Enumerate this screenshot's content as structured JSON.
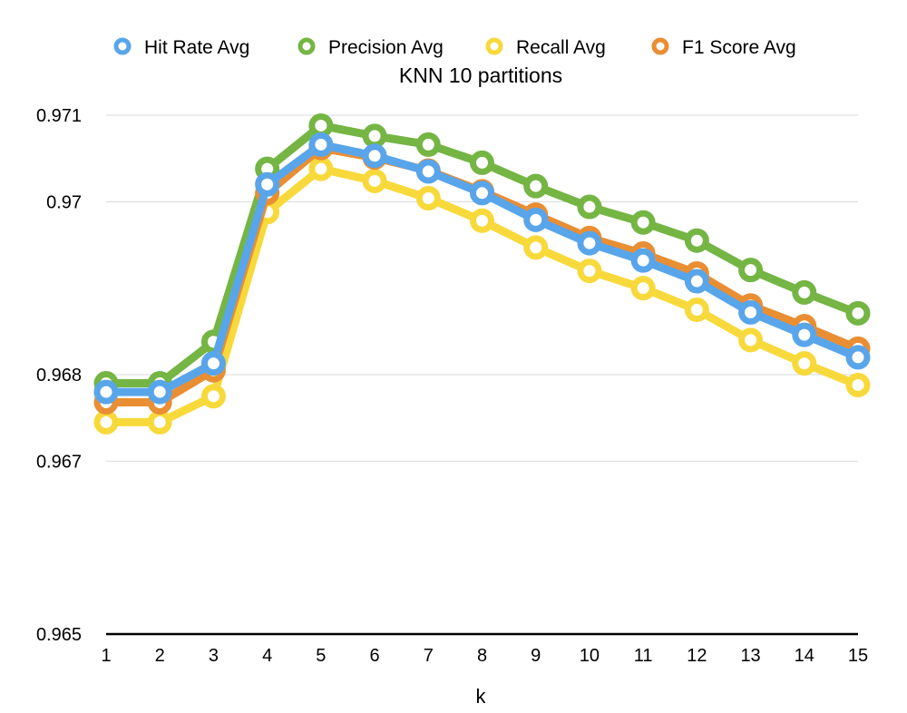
{
  "chart_data": {
    "type": "line",
    "title": "KNN 10 partitions",
    "xlabel": "k",
    "ylabel": "",
    "x": [
      1,
      2,
      3,
      4,
      5,
      6,
      7,
      8,
      9,
      10,
      11,
      12,
      13,
      14,
      15
    ],
    "ylim": [
      0.965,
      0.971
    ],
    "yticks": [
      0.965,
      0.967,
      0.968,
      0.97,
      0.971
    ],
    "ytick_labels": [
      "0.965",
      "0.967",
      "0.968",
      "0.97",
      "0.971"
    ],
    "grid": true,
    "legend_position": "top",
    "series": [
      {
        "name": "Precision Avg",
        "color": "#74b544",
        "values": [
          0.9679,
          0.9679,
          0.96838,
          0.97038,
          0.97088,
          0.97076,
          0.97066,
          0.97045,
          0.97018,
          0.96994,
          0.96976,
          0.96955,
          0.96921,
          0.96895,
          0.96871
        ]
      },
      {
        "name": "Recall Avg",
        "color": "#f8d93b",
        "values": [
          0.96745,
          0.96745,
          0.96775,
          0.96988,
          0.97038,
          0.97024,
          0.97004,
          0.96978,
          0.96947,
          0.9692,
          0.969,
          0.96875,
          0.9684,
          0.96813,
          0.96788
        ]
      },
      {
        "name": "F1 Score Avg",
        "color": "#e98e33",
        "values": [
          0.96768,
          0.96768,
          0.96805,
          0.9701,
          0.97062,
          0.97051,
          0.97036,
          0.97012,
          0.96985,
          0.96958,
          0.9694,
          0.96917,
          0.9688,
          0.96856,
          0.9683
        ]
      },
      {
        "name": "Hit Rate Avg",
        "color": "#59a5ea",
        "values": [
          0.9678,
          0.9678,
          0.96813,
          0.9702,
          0.97066,
          0.97053,
          0.97035,
          0.9701,
          0.96979,
          0.96952,
          0.96932,
          0.96908,
          0.96872,
          0.96846,
          0.9682
        ]
      }
    ],
    "legend": [
      {
        "name": "Hit Rate Avg",
        "color": "#59a5ea"
      },
      {
        "name": "Precision Avg",
        "color": "#74b544"
      },
      {
        "name": "Recall Avg",
        "color": "#f8d93b"
      },
      {
        "name": "F1 Score Avg",
        "color": "#e98e33"
      }
    ]
  }
}
